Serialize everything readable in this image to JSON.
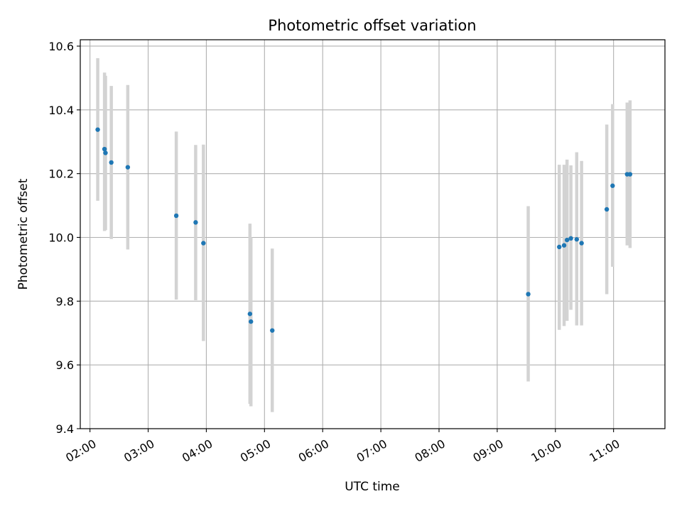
{
  "chart_data": {
    "type": "scatter",
    "title": "Photometric offset variation",
    "xlabel": "UTC time",
    "ylabel": "Photometric offset",
    "xlim": [
      "01:50",
      "11:53"
    ],
    "ylim": [
      9.4,
      10.62
    ],
    "xticks": [
      "02:00",
      "03:00",
      "04:00",
      "05:00",
      "06:00",
      "07:00",
      "08:00",
      "09:00",
      "10:00",
      "11:00"
    ],
    "yticks": [
      "9.4",
      "9.6",
      "9.8",
      "10.0",
      "10.2",
      "10.4",
      "10.6"
    ],
    "grid": true,
    "colors": {
      "point": "#1f77b4",
      "errorbar": "#d3d3d3",
      "grid": "#b0b0b0"
    },
    "points": [
      {
        "time": "02:08",
        "y": 10.338,
        "err_low": 10.115,
        "err_high": 10.562
      },
      {
        "time": "02:15",
        "y": 10.277,
        "err_low": 10.02,
        "err_high": 10.517
      },
      {
        "time": "02:16",
        "y": 10.265,
        "err_low": 10.023,
        "err_high": 10.507
      },
      {
        "time": "02:22",
        "y": 10.235,
        "err_low": 9.995,
        "err_high": 10.475
      },
      {
        "time": "02:39",
        "y": 10.22,
        "err_low": 9.962,
        "err_high": 10.478
      },
      {
        "time": "03:29",
        "y": 10.068,
        "err_low": 9.805,
        "err_high": 10.332
      },
      {
        "time": "03:49",
        "y": 10.047,
        "err_low": 9.803,
        "err_high": 10.29
      },
      {
        "time": "03:57",
        "y": 9.982,
        "err_low": 9.675,
        "err_high": 10.291
      },
      {
        "time": "04:45",
        "y": 9.76,
        "err_low": 9.478,
        "err_high": 10.043
      },
      {
        "time": "04:46",
        "y": 9.736,
        "err_low": 9.47,
        "err_high": 10.0
      },
      {
        "time": "05:08",
        "y": 9.708,
        "err_low": 9.452,
        "err_high": 9.965
      },
      {
        "time": "09:32",
        "y": 9.822,
        "err_low": 9.548,
        "err_high": 10.098
      },
      {
        "time": "10:04",
        "y": 9.97,
        "err_low": 9.71,
        "err_high": 10.228
      },
      {
        "time": "10:09",
        "y": 9.975,
        "err_low": 9.722,
        "err_high": 10.228
      },
      {
        "time": "10:12",
        "y": 9.992,
        "err_low": 9.738,
        "err_high": 10.244
      },
      {
        "time": "10:16",
        "y": 9.997,
        "err_low": 9.773,
        "err_high": 10.226
      },
      {
        "time": "10:22",
        "y": 9.994,
        "err_low": 9.724,
        "err_high": 10.267
      },
      {
        "time": "10:27",
        "y": 9.982,
        "err_low": 9.724,
        "err_high": 10.24
      },
      {
        "time": "10:53",
        "y": 10.088,
        "err_low": 9.822,
        "err_high": 10.354
      },
      {
        "time": "10:59",
        "y": 10.162,
        "err_low": 9.908,
        "err_high": 10.418
      },
      {
        "time": "11:14",
        "y": 10.198,
        "err_low": 9.975,
        "err_high": 10.423
      },
      {
        "time": "11:17",
        "y": 10.198,
        "err_low": 9.967,
        "err_high": 10.43
      }
    ]
  }
}
